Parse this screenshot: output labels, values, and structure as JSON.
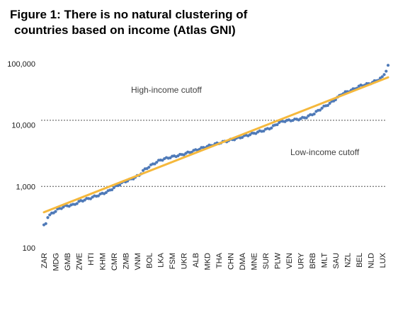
{
  "chart_data": {
    "type": "scatter",
    "title_line1": "Figure 1: There is no natural clustering of",
    "title_line2": "countries based on income (Atlas GNI)",
    "title": "Figure 1: There is no natural clustering of countries based on income (Atlas GNI)",
    "xlabel": "",
    "ylabel": "",
    "y_scale": "log",
    "ylim": [
      100,
      100000
    ],
    "y_ticks": [
      "100",
      "1,000",
      "10,000",
      "100,000"
    ],
    "y_tick_values": [
      100,
      1000,
      10000,
      100000
    ],
    "x_tick_labels": [
      "ZAR",
      "MDG",
      "GMB",
      "ZWE",
      "HTI",
      "KHM",
      "CMR",
      "ZMB",
      "VNM",
      "BOL",
      "LKA",
      "FSM",
      "UKR",
      "ALB",
      "MKD",
      "THA",
      "CHN",
      "DMA",
      "MNE",
      "SUR",
      "PLW",
      "VEN",
      "URY",
      "BRB",
      "MLT",
      "SAU",
      "NZL",
      "BEL",
      "NLD",
      "LUX"
    ],
    "x_tick_ranks": [
      1,
      7,
      13,
      19,
      25,
      31,
      37,
      43,
      49,
      55,
      61,
      67,
      73,
      79,
      85,
      91,
      97,
      103,
      109,
      115,
      121,
      127,
      133,
      139,
      145,
      151,
      157,
      163,
      169,
      175
    ],
    "x_range": [
      1,
      178
    ],
    "series_points": {
      "color": "#4f7ab8",
      "x": [
        1,
        2,
        3,
        5,
        8,
        12,
        16,
        20,
        25,
        30,
        34,
        38,
        42,
        46,
        50,
        52,
        55,
        58,
        61,
        66,
        72,
        78,
        84,
        90,
        96,
        102,
        108,
        114,
        118,
        120,
        122,
        124,
        128,
        132,
        136,
        140,
        144,
        148,
        152,
        154,
        156,
        158,
        160,
        164,
        168,
        172,
        175,
        176,
        177,
        178
      ],
      "y": [
        230,
        250,
        320,
        360,
        420,
        480,
        500,
        580,
        650,
        740,
        830,
        1000,
        1180,
        1320,
        1520,
        1800,
        2100,
        2400,
        2700,
        3000,
        3300,
        3800,
        4400,
        5000,
        5600,
        6300,
        7200,
        8200,
        9100,
        10000,
        11000,
        11600,
        12000,
        12500,
        13500,
        15500,
        19000,
        22500,
        28000,
        32000,
        34000,
        36000,
        38000,
        44000,
        47000,
        53000,
        60000,
        68000,
        77000,
        92000
      ]
    },
    "trend_line": {
      "color": "#f5b83c",
      "x": [
        1,
        178
      ],
      "y": [
        380,
        60000
      ]
    },
    "reference_lines": [
      {
        "value": 12000,
        "label": "High-income cutoff",
        "color": "#808080"
      },
      {
        "value": 1000,
        "label": "Low-income cutoff",
        "color": "#808080"
      }
    ],
    "grid": false,
    "legend": "none"
  }
}
